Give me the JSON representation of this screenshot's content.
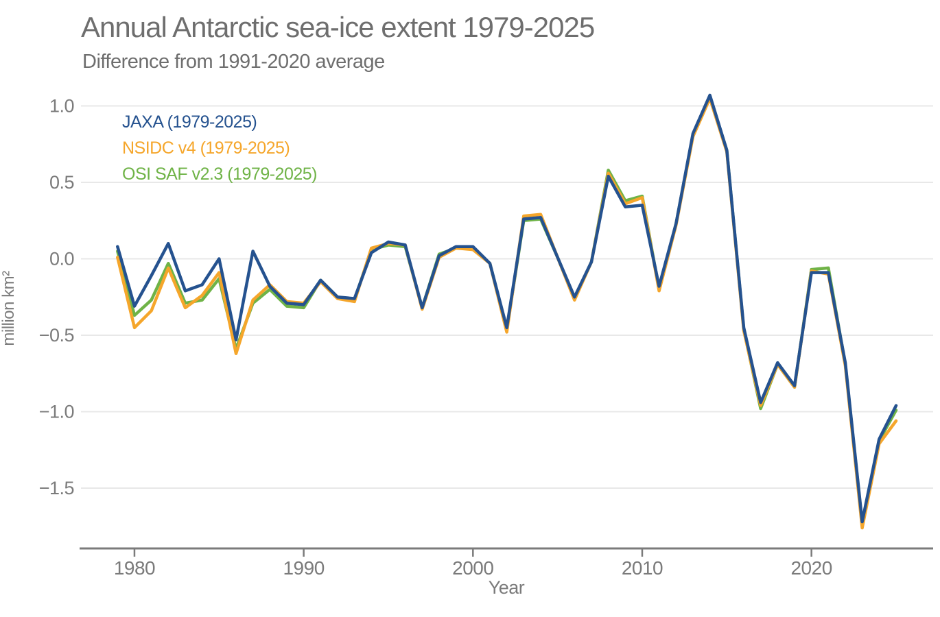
{
  "chart_data": {
    "type": "line",
    "title": "Annual Antarctic sea-ice extent 1979-2025",
    "subtitle": "Difference from 1991-2020 average",
    "xlabel": "Year",
    "ylabel": "million km²",
    "grid": "horizontal-only",
    "legend_position": "top-left-inside-plot",
    "axis_color": "#7b7b7b",
    "grid_color": "#e8e8e8",
    "text_color": "#6e6e6e",
    "xlim": [
      1976.9,
      2027.2
    ],
    "ylim": [
      -1.9,
      1.1
    ],
    "x_ticks": [
      {
        "value": 1980,
        "label": "1980"
      },
      {
        "value": 1990,
        "label": "1990"
      },
      {
        "value": 2000,
        "label": "2000"
      },
      {
        "value": 2010,
        "label": "2010"
      },
      {
        "value": 2020,
        "label": "2020"
      }
    ],
    "y_ticks": [
      {
        "value": 1.0,
        "label": "1.0"
      },
      {
        "value": 0.5,
        "label": "0.5"
      },
      {
        "value": 0.0,
        "label": "0.0"
      },
      {
        "value": -0.5,
        "label": "−0.5"
      },
      {
        "value": -1.0,
        "label": "−1.0"
      },
      {
        "value": -1.5,
        "label": "−1.5"
      }
    ],
    "x": [
      1979,
      1980,
      1981,
      1982,
      1983,
      1984,
      1985,
      1986,
      1987,
      1988,
      1989,
      1990,
      1991,
      1992,
      1993,
      1994,
      1995,
      1996,
      1997,
      1998,
      1999,
      2000,
      2001,
      2002,
      2003,
      2004,
      2005,
      2006,
      2007,
      2008,
      2009,
      2010,
      2011,
      2012,
      2013,
      2014,
      2015,
      2016,
      2017,
      2018,
      2019,
      2020,
      2021,
      2022,
      2023,
      2024,
      2025
    ],
    "series": [
      {
        "name": "JAXA",
        "label": "JAXA (1979-2025)",
        "color": "#25528f",
        "values": [
          0.08,
          -0.31,
          -0.11,
          0.1,
          -0.21,
          -0.17,
          0.0,
          -0.53,
          0.05,
          -0.18,
          -0.29,
          -0.3,
          -0.14,
          -0.25,
          -0.26,
          0.04,
          0.11,
          0.09,
          -0.32,
          0.02,
          0.08,
          0.08,
          -0.03,
          -0.45,
          0.26,
          0.27,
          0.01,
          -0.25,
          -0.02,
          0.54,
          0.34,
          0.35,
          -0.18,
          0.23,
          0.82,
          1.07,
          0.71,
          -0.45,
          -0.94,
          -0.68,
          -0.83,
          -0.09,
          -0.09,
          -0.68,
          -1.72,
          -1.18,
          -0.96
        ]
      },
      {
        "name": "NSIDC v4",
        "label": "NSIDC v4 (1979-2025)",
        "color": "#f5a62b",
        "values": [
          0.01,
          -0.45,
          -0.34,
          -0.06,
          -0.32,
          -0.24,
          -0.09,
          -0.62,
          -0.27,
          -0.17,
          -0.28,
          -0.29,
          -0.15,
          -0.26,
          -0.28,
          0.07,
          0.1,
          0.09,
          -0.33,
          0.01,
          0.07,
          0.06,
          -0.03,
          -0.48,
          0.28,
          0.29,
          0.01,
          -0.27,
          -0.02,
          0.56,
          0.36,
          0.4,
          -0.21,
          0.22,
          0.8,
          1.05,
          0.7,
          -0.47,
          -0.96,
          -0.69,
          -0.84,
          -0.08,
          -0.1,
          -0.7,
          -1.76,
          -1.21,
          -1.06
        ]
      },
      {
        "name": "OSI SAF v2.3",
        "label": "OSI SAF v2.3 (1979-2025)",
        "color": "#6fb347",
        "values": [
          0.05,
          -0.37,
          -0.27,
          -0.03,
          -0.29,
          -0.27,
          -0.13,
          -0.59,
          -0.29,
          -0.2,
          -0.31,
          -0.32,
          -0.14,
          -0.25,
          -0.27,
          0.06,
          0.09,
          0.08,
          -0.32,
          0.03,
          0.07,
          0.07,
          -0.03,
          -0.46,
          0.25,
          0.26,
          0.01,
          -0.26,
          -0.02,
          0.58,
          0.38,
          0.41,
          -0.2,
          0.23,
          0.81,
          1.06,
          0.71,
          -0.46,
          -0.98,
          -0.69,
          -0.84,
          -0.07,
          -0.06,
          -0.69,
          -1.73,
          -1.19,
          -0.99
        ]
      }
    ]
  }
}
